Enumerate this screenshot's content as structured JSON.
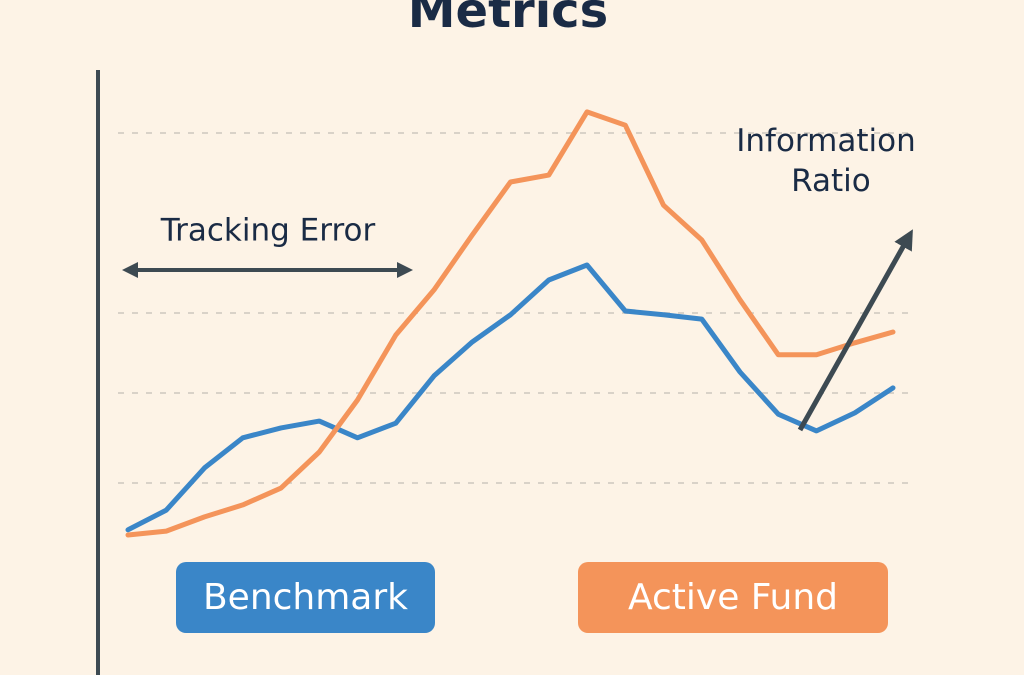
{
  "chart_data": {
    "type": "line",
    "title": "Metrics",
    "annotations": [
      "Tracking Error",
      "Information Ratio"
    ],
    "x": [
      0,
      1,
      2,
      3,
      4,
      5,
      6,
      7,
      8,
      9,
      10,
      11,
      12,
      13,
      14,
      15,
      16,
      17,
      18,
      19,
      20
    ],
    "xlim": [
      0,
      20
    ],
    "ylim": [
      0,
      100
    ],
    "series": [
      {
        "name": "Benchmark",
        "color": "#3a86c8",
        "values": [
          1.2,
          5.8,
          15.6,
          22.6,
          24.9,
          26.5,
          22.6,
          26,
          37,
          44.9,
          51.2,
          59.3,
          62.8,
          52.1,
          51.2,
          50.2,
          37.9,
          28.1,
          24.2,
          28.4,
          34.2
        ]
      },
      {
        "name": "Active Fund",
        "color": "#f4945a",
        "values": [
          0,
          0.9,
          4.2,
          7,
          10.9,
          19.3,
          31.4,
          46.5,
          57,
          69.8,
          82.1,
          83.7,
          98.4,
          95.3,
          76.7,
          68.6,
          54.7,
          41.9,
          41.9,
          44.7,
          47.2
        ]
      }
    ]
  }
}
